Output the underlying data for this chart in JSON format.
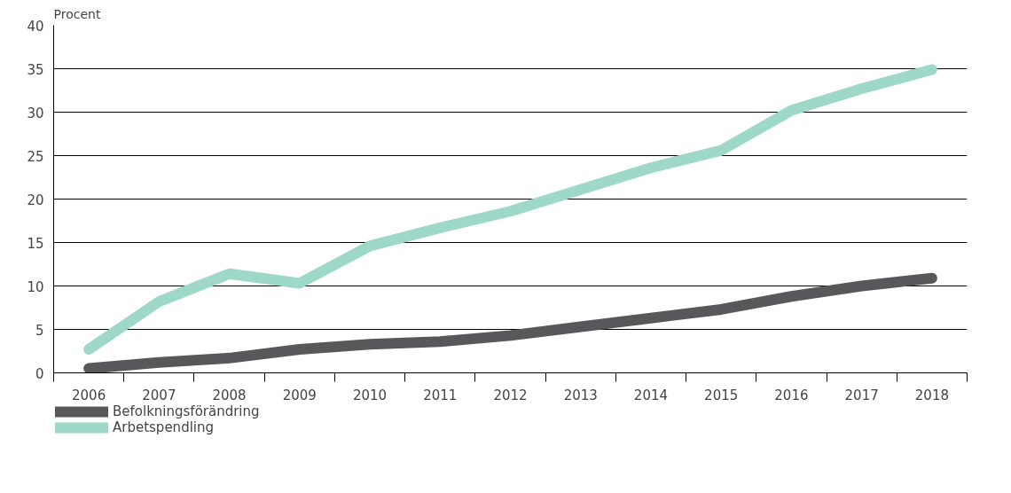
{
  "chart_data": {
    "type": "line",
    "ylabel": "Procent",
    "categories": [
      "2006",
      "2007",
      "2008",
      "2009",
      "2010",
      "2011",
      "2012",
      "2013",
      "2014",
      "2015",
      "2016",
      "2017",
      "2018"
    ],
    "series": [
      {
        "name": "Befolkningsförändring",
        "color": "#58585a",
        "values": [
          0.5,
          1.2,
          1.7,
          2.7,
          3.3,
          3.6,
          4.3,
          5.3,
          6.3,
          7.3,
          8.8,
          10.0,
          10.9
        ]
      },
      {
        "name": "Arbetspendling",
        "color": "#9dd8c8",
        "values": [
          2.7,
          8.2,
          11.4,
          10.3,
          14.6,
          16.7,
          18.6,
          21.1,
          23.6,
          25.6,
          30.2,
          32.7,
          34.9
        ]
      }
    ],
    "ylim": [
      0,
      40
    ],
    "yticks": [
      0,
      5,
      10,
      15,
      20,
      25,
      30,
      35,
      40
    ],
    "grid": "y",
    "legend": "bottom left",
    "marker": "none",
    "line_style": "solid"
  }
}
